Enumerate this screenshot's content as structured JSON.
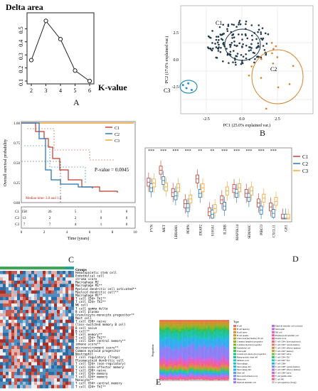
{
  "panels": {
    "A": {
      "label": "A"
    },
    "B": {
      "label": "B"
    },
    "C": {
      "label": "C"
    },
    "D": {
      "label": "D"
    },
    "E": {
      "label": "E"
    }
  },
  "chart_data": [
    {
      "id": "A",
      "type": "line",
      "title": "Delta area",
      "xlabel": "K-value",
      "ylabel": "",
      "x": [
        2,
        3,
        4,
        5,
        6
      ],
      "values": [
        0.26,
        0.56,
        0.42,
        0.18,
        0.1
      ],
      "xlim": [
        2,
        6
      ],
      "ylim": [
        0.1,
        0.55
      ],
      "xticks": [
        "2",
        "3",
        "4",
        "5",
        "6"
      ],
      "yticks": [
        "0.1",
        "0.2",
        "0.3",
        "0.4",
        "0.5"
      ]
    },
    {
      "id": "B",
      "type": "scatter",
      "xlabel": "PC1 (25.0% explained var.)",
      "ylabel": "PC2 (17.6% explained var.)",
      "xticks": [
        "-2.5",
        "0.0",
        "2.5"
      ],
      "yticks": [
        "2.5",
        "0.0",
        "-2.5"
      ],
      "colors": {
        "C1": "#213b4f",
        "C2": "#d9822b",
        "C3": "#2a8fbf"
      },
      "cluster_labels": [
        "C1",
        "C2",
        "C3"
      ]
    },
    {
      "id": "C",
      "type": "line",
      "xlabel": "Time (years)",
      "ylabel": "Overall survival probability",
      "yticks": [
        "1.00",
        "0.75",
        "0.50",
        "0.25",
        "0.00"
      ],
      "xticks": [
        "0",
        "2",
        "4",
        "6",
        "8",
        "10"
      ],
      "pvalue": "P-value = 0.0045",
      "median_note": "Median time: 3.0 and 1.6",
      "legend": [
        "C1",
        "C2",
        "C3"
      ],
      "colors": {
        "C1": "#c0392b",
        "C2": "#1f6fb4",
        "C3": "#f0a030"
      },
      "risk_table": {
        "rows": [
          "C1",
          "C2",
          "C3"
        ],
        "values": [
          [
            "158",
            "26",
            "5",
            "1",
            "0"
          ],
          [
            "13",
            "2",
            "2",
            "0",
            "0"
          ],
          [
            "7",
            "7",
            "4",
            "1",
            "0"
          ]
        ]
      }
    },
    {
      "id": "D",
      "type": "bar",
      "categories": [
        "FYN",
        "MET",
        "LRRAM1",
        "PDPN",
        "ERAP2",
        "S100A1",
        "IL2RB",
        "MAP3K14",
        "SEMA6C",
        "PIRCO",
        "CXCL11",
        "GH1"
      ],
      "significance": [
        "***",
        "***",
        "***",
        "***",
        "**",
        "**",
        "***",
        "***",
        "***",
        "***",
        "***",
        ""
      ],
      "legend": [
        "C1",
        "C2",
        "C3"
      ],
      "colors": {
        "C1": "#c0392b",
        "C2": "#1f6fb4",
        "C3": "#f0a030"
      },
      "series": [
        {
          "name": "C1",
          "values": [
            4.6,
            6.1,
            3.3,
            1.9,
            5.0,
            0.9,
            2.4,
            3.8,
            3.2,
            2.0,
            1.5,
            0.1
          ]
        },
        {
          "name": "C2",
          "values": [
            3.9,
            4.8,
            2.9,
            1.4,
            3.2,
            0.6,
            1.6,
            3.2,
            2.7,
            1.1,
            0.7,
            0.1
          ]
        },
        {
          "name": "C3",
          "values": [
            4.5,
            4.0,
            3.9,
            2.5,
            3.9,
            1.3,
            3.5,
            3.9,
            3.5,
            2.6,
            2.2,
            0.1
          ]
        }
      ],
      "ylim": [
        0,
        8
      ]
    }
  ],
  "heatmap": {
    "header": "Groups",
    "rows": [
      "Hematopoietic stem cell",
      "Endothelial cell",
      "stroma score",
      "Macrophage M2",
      "Macrophage M1**",
      "Myeloid dendritic cell activated**",
      "Myeloid dendritic cell**",
      "Macrophage M1**",
      "T cell CD4+ Th1**",
      "T cell CD4+ Th2**",
      "NK cell",
      "T cell gamma delta",
      "B cell plasma",
      "Granulocyte-monocyte progenitor**",
      "Mast cell",
      "T cell CD8+ naive",
      "Class-switched memory B cell",
      "B cell naive",
      "B cell**",
      "T cell memory**",
      "T cell CD4+ Th2**",
      "T cell CD4+ central memory**",
      "immune score**",
      "microenvironment score**",
      "Common myeloid progenitor",
      "Neutrophil",
      "T cell regulatory (Tregs)",
      "Plasmacytoid dendritic cell",
      "T cell CD4+ (non-regulatory)",
      "T cell CD4+ effector memory",
      "T cell CD8+ naive",
      "T cell CD4+ memory",
      "T cell CD4+ memory",
      "Monocyte**",
      "T cell CD4+ central memory",
      "T cell CD4+ Th1**"
    ]
  },
  "stacked": {
    "ylabel": "Proportion",
    "legend_title": "Type",
    "legend_col1": [
      "B cell",
      "B cell memory",
      "B cell naive",
      "B cell plasma",
      "Class-switched memory B cell",
      "Common lymphoid progenitor",
      "Common myeloid progenitor",
      "Endothelial cell",
      "Eosinophil",
      "Granulocyte-monocyte progenitor",
      "Hematopoietic stem cell",
      "immune score",
      "Macrophage",
      "Macrophage M1",
      "Macrophage M2",
      "Mast cell",
      "microenvironment score",
      "Monocyte",
      "Myeloid dendritic cell"
    ],
    "legend_col2": [
      "Myeloid dendritic cell activated",
      "Neutrophil",
      "NK cell",
      "Plasmacytoid dendritic cell",
      "stroma score",
      "T cell CD4+ (non-regulatory)",
      "T cell CD4+ central memory",
      "T cell CD4+ effector memory",
      "T cell CD4+ memory",
      "T cell CD4+ naive",
      "T cell CD4+ Th1",
      "T cell CD4+ Th2",
      "T cell CD8+",
      "T cell CD8+ central memory",
      "T cell CD8+ effector memory",
      "T cell CD8+ naive",
      "T cell gamma delta",
      "T cell NK",
      "T cell regulatory (Tregs)"
    ],
    "colors": [
      "#e8726a",
      "#e0812c",
      "#d4902a",
      "#c49a2a",
      "#b0a52a",
      "#98ae2a",
      "#7db62a",
      "#5cbc34",
      "#34c050",
      "#22c278",
      "#20c39a",
      "#1fc3b8",
      "#20c0d0",
      "#22b8e2",
      "#32aef0",
      "#52a0f6",
      "#7090f8",
      "#8c80f6",
      "#a874f0",
      "#c06ae6",
      "#d462d8",
      "#e25ec6",
      "#ec5cb0",
      "#f05e98",
      "#f26480",
      "#e87a6a",
      "#d88e42",
      "#b6a42e",
      "#80b83a",
      "#3cc27a",
      "#22c4b0",
      "#2aaee6",
      "#6c8ef8",
      "#a478ee",
      "#d464d6",
      "#ee5ea4",
      "#f06a74",
      "#c8c8c8"
    ]
  }
}
